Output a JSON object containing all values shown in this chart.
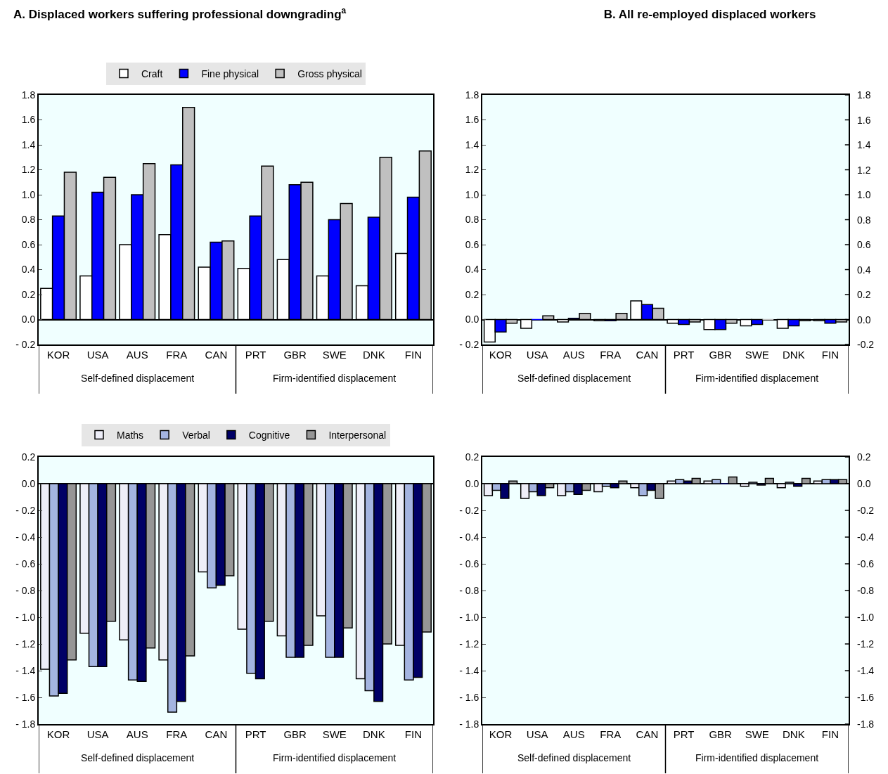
{
  "chart_data": [
    {
      "type": "bar",
      "title": "A. Displaced workers suffering professional downgrading$^{a}$",
      "categories": [
        "KOR",
        "USA",
        "AUS",
        "FRA",
        "CAN",
        "PRT",
        "GBR",
        "SWE",
        "DNK",
        "FIN"
      ],
      "series": [
        {
          "name": "Craft",
          "color": "#ffffff",
          "values": [
            0.25,
            0.35,
            0.6,
            0.68,
            0.42,
            0.41,
            0.48,
            0.35,
            0.27,
            0.53
          ]
        },
        {
          "name": "Fine physical",
          "color": "#0000ff",
          "values": [
            0.83,
            1.02,
            1.0,
            1.24,
            0.62,
            0.83,
            1.08,
            0.8,
            0.82,
            0.98
          ]
        },
        {
          "name": "Gross physical",
          "color": "#c0c0c0",
          "values": [
            1.18,
            1.14,
            1.25,
            1.7,
            0.63,
            1.23,
            1.1,
            0.93,
            1.3,
            1.35
          ]
        }
      ],
      "ylim": [
        -0.2,
        1.8
      ],
      "yticks": [
        {
          "value": -0.2,
          "label": "- 0.2"
        },
        {
          "value": 0,
          "label": "0.0"
        },
        {
          "value": 0.2,
          "label": "0.2"
        },
        {
          "value": 0.4,
          "label": "0.4"
        },
        {
          "value": 0.6,
          "label": "0.6"
        },
        {
          "value": 0.8,
          "label": "0.8"
        },
        {
          "value": 1,
          "label": "1.0"
        },
        {
          "value": 1.2,
          "label": "1.2"
        },
        {
          "value": 1.4,
          "label": "1.4"
        },
        {
          "value": 1.6,
          "label": "1.6"
        },
        {
          "value": 1.8,
          "label": "1.8"
        }
      ],
      "legend": "top",
      "annotations": [
        "Self-defined displacement",
        "Firm-identified displacement"
      ]
    },
    {
      "type": "bar",
      "title": "B. All re-employed displaced workers",
      "categories": [
        "KOR",
        "USA",
        "AUS",
        "FRA",
        "CAN",
        "PRT",
        "GBR",
        "SWE",
        "DNK",
        "FIN"
      ],
      "series": [
        {
          "color": "#ffffff",
          "values": [
            -0.18,
            -0.07,
            -0.02,
            -0.01,
            0.15,
            -0.03,
            -0.08,
            -0.05,
            -0.07,
            -0.01
          ]
        },
        {
          "color": "#0000ff",
          "values": [
            -0.1,
            0.0,
            0.01,
            -0.01,
            0.12,
            -0.04,
            -0.08,
            -0.04,
            -0.05,
            -0.03
          ]
        },
        {
          "color": "#c0c0c0",
          "values": [
            -0.03,
            0.03,
            0.05,
            0.05,
            0.09,
            -0.02,
            -0.03,
            0.0,
            -0.01,
            -0.02
          ]
        }
      ],
      "ylim": [
        -0.2,
        1.8
      ],
      "yticks": [
        {
          "value": -0.2,
          "label": "- 0.2"
        },
        {
          "value": 0,
          "label": "0.0"
        },
        {
          "value": 0.2,
          "label": "0.2"
        },
        {
          "value": 0.4,
          "label": "0.4"
        },
        {
          "value": 0.6,
          "label": "0.6"
        },
        {
          "value": 0.8,
          "label": "0.8"
        },
        {
          "value": 1,
          "label": "1.0"
        },
        {
          "value": 1.2,
          "label": "1.2"
        },
        {
          "value": 1.4,
          "label": "1.4"
        },
        {
          "value": 1.6,
          "label": "1.6"
        },
        {
          "value": 1.8,
          "label": "1.8"
        }
      ],
      "y2lim": [
        -0.2,
        1.8
      ],
      "y2ticks": [
        {
          "value": -0.2,
          "label": "-0.2"
        },
        {
          "value": 0,
          "label": "0.0"
        },
        {
          "value": 0.2,
          "label": "0.2"
        },
        {
          "value": 0.4,
          "label": "0.4"
        },
        {
          "value": 0.6,
          "label": "0.6"
        },
        {
          "value": 0.8,
          "label": "0.8"
        },
        {
          "value": 1,
          "label": "1.0"
        },
        {
          "value": 1.2,
          "label": "1.2"
        },
        {
          "value": 1.4,
          "label": "1.4"
        },
        {
          "value": 1.6,
          "label": "1.6"
        },
        {
          "value": 1.8,
          "label": "1.8"
        }
      ],
      "annotations": [
        "Self-defined displacement",
        "Firm-identified displacement"
      ]
    },
    {
      "type": "bar",
      "categories": [
        "KOR",
        "USA",
        "AUS",
        "FRA",
        "CAN",
        "PRT",
        "GBR",
        "SWE",
        "DNK",
        "FIN"
      ],
      "series": [
        {
          "name": "Maths",
          "color": "#eeeef8",
          "values": [
            -1.39,
            -1.12,
            -1.17,
            -1.32,
            -0.66,
            -1.09,
            -1.14,
            -0.99,
            -1.46,
            -1.21
          ]
        },
        {
          "name": "Verbal",
          "color": "#a4b4e0",
          "values": [
            -1.59,
            -1.37,
            -1.47,
            -1.71,
            -0.78,
            -1.42,
            -1.3,
            -1.3,
            -1.55,
            -1.47
          ]
        },
        {
          "name": "Cognitive",
          "color": "#000066",
          "values": [
            -1.57,
            -1.37,
            -1.48,
            -1.63,
            -0.76,
            -1.46,
            -1.3,
            -1.3,
            -1.63,
            -1.45
          ]
        },
        {
          "name": "Interpersonal",
          "color": "#969696",
          "values": [
            -1.32,
            -1.03,
            -1.23,
            -1.29,
            -0.69,
            -1.03,
            -1.21,
            -1.08,
            -1.2,
            -1.11
          ]
        }
      ],
      "ylim": [
        -1.8,
        0.2
      ],
      "yticks": [
        {
          "value": -1.8,
          "label": "- 1.8"
        },
        {
          "value": -1.6,
          "label": "- 1.6"
        },
        {
          "value": -1.4,
          "label": "- 1.4"
        },
        {
          "value": -1.2,
          "label": "- 1.2"
        },
        {
          "value": -1,
          "label": "- 1.0"
        },
        {
          "value": -0.8,
          "label": "- 0.8"
        },
        {
          "value": -0.6,
          "label": "- 0.6"
        },
        {
          "value": -0.4,
          "label": "- 0.4"
        },
        {
          "value": -0.2,
          "label": "- 0.2"
        },
        {
          "value": 0,
          "label": "0.0"
        },
        {
          "value": 0.2,
          "label": "0.2"
        }
      ],
      "legend": "top",
      "annotations": [
        "Self-defined displacement",
        "Firm-identified displacement"
      ]
    },
    {
      "type": "bar",
      "categories": [
        "KOR",
        "USA",
        "AUS",
        "FRA",
        "CAN",
        "PRT",
        "GBR",
        "SWE",
        "DNK",
        "FIN"
      ],
      "series": [
        {
          "color": "#eeeef8",
          "values": [
            -0.09,
            -0.11,
            -0.09,
            -0.06,
            -0.03,
            0.02,
            0.02,
            -0.02,
            -0.03,
            0.02
          ]
        },
        {
          "color": "#a4b4e0",
          "values": [
            -0.05,
            -0.06,
            -0.06,
            -0.02,
            -0.09,
            0.03,
            0.03,
            0.01,
            0.01,
            0.03
          ]
        },
        {
          "color": "#000066",
          "values": [
            -0.11,
            -0.09,
            -0.08,
            -0.03,
            -0.05,
            0.02,
            0.0,
            -0.01,
            -0.02,
            0.03
          ]
        },
        {
          "color": "#969696",
          "values": [
            0.02,
            -0.03,
            -0.05,
            0.02,
            -0.11,
            0.04,
            0.05,
            0.04,
            0.04,
            0.03
          ]
        }
      ],
      "ylim": [
        -1.8,
        0.2
      ],
      "yticks": [
        {
          "value": -1.8,
          "label": "- 1.8"
        },
        {
          "value": -1.6,
          "label": "- 1.6"
        },
        {
          "value": -1.4,
          "label": "- 1.4"
        },
        {
          "value": -1.2,
          "label": "- 1.2"
        },
        {
          "value": -1,
          "label": "- 1.0"
        },
        {
          "value": -0.8,
          "label": "- 0.8"
        },
        {
          "value": -0.6,
          "label": "- 0.6"
        },
        {
          "value": -0.4,
          "label": "- 0.4"
        },
        {
          "value": -0.2,
          "label": "- 0.2"
        },
        {
          "value": 0,
          "label": "0.0"
        },
        {
          "value": 0.2,
          "label": "0.2"
        }
      ],
      "y2lim": [
        -1.8,
        0.2
      ],
      "y2ticks": [
        {
          "value": -1.8,
          "label": "-1.8"
        },
        {
          "value": -1.6,
          "label": "-1.6"
        },
        {
          "value": -1.4,
          "label": "-1.4"
        },
        {
          "value": -1.2,
          "label": "-1.2"
        },
        {
          "value": -1,
          "label": "-1.0"
        },
        {
          "value": -0.8,
          "label": "-0.8"
        },
        {
          "value": -0.6,
          "label": "-0.6"
        },
        {
          "value": -0.4,
          "label": "-0.4"
        },
        {
          "value": -0.2,
          "label": "-0.2"
        },
        {
          "value": 0,
          "label": "0.0"
        },
        {
          "value": 0.2,
          "label": "0.2"
        }
      ],
      "annotations": [
        "Self-defined displacement",
        "Firm-identified displacement"
      ]
    }
  ]
}
